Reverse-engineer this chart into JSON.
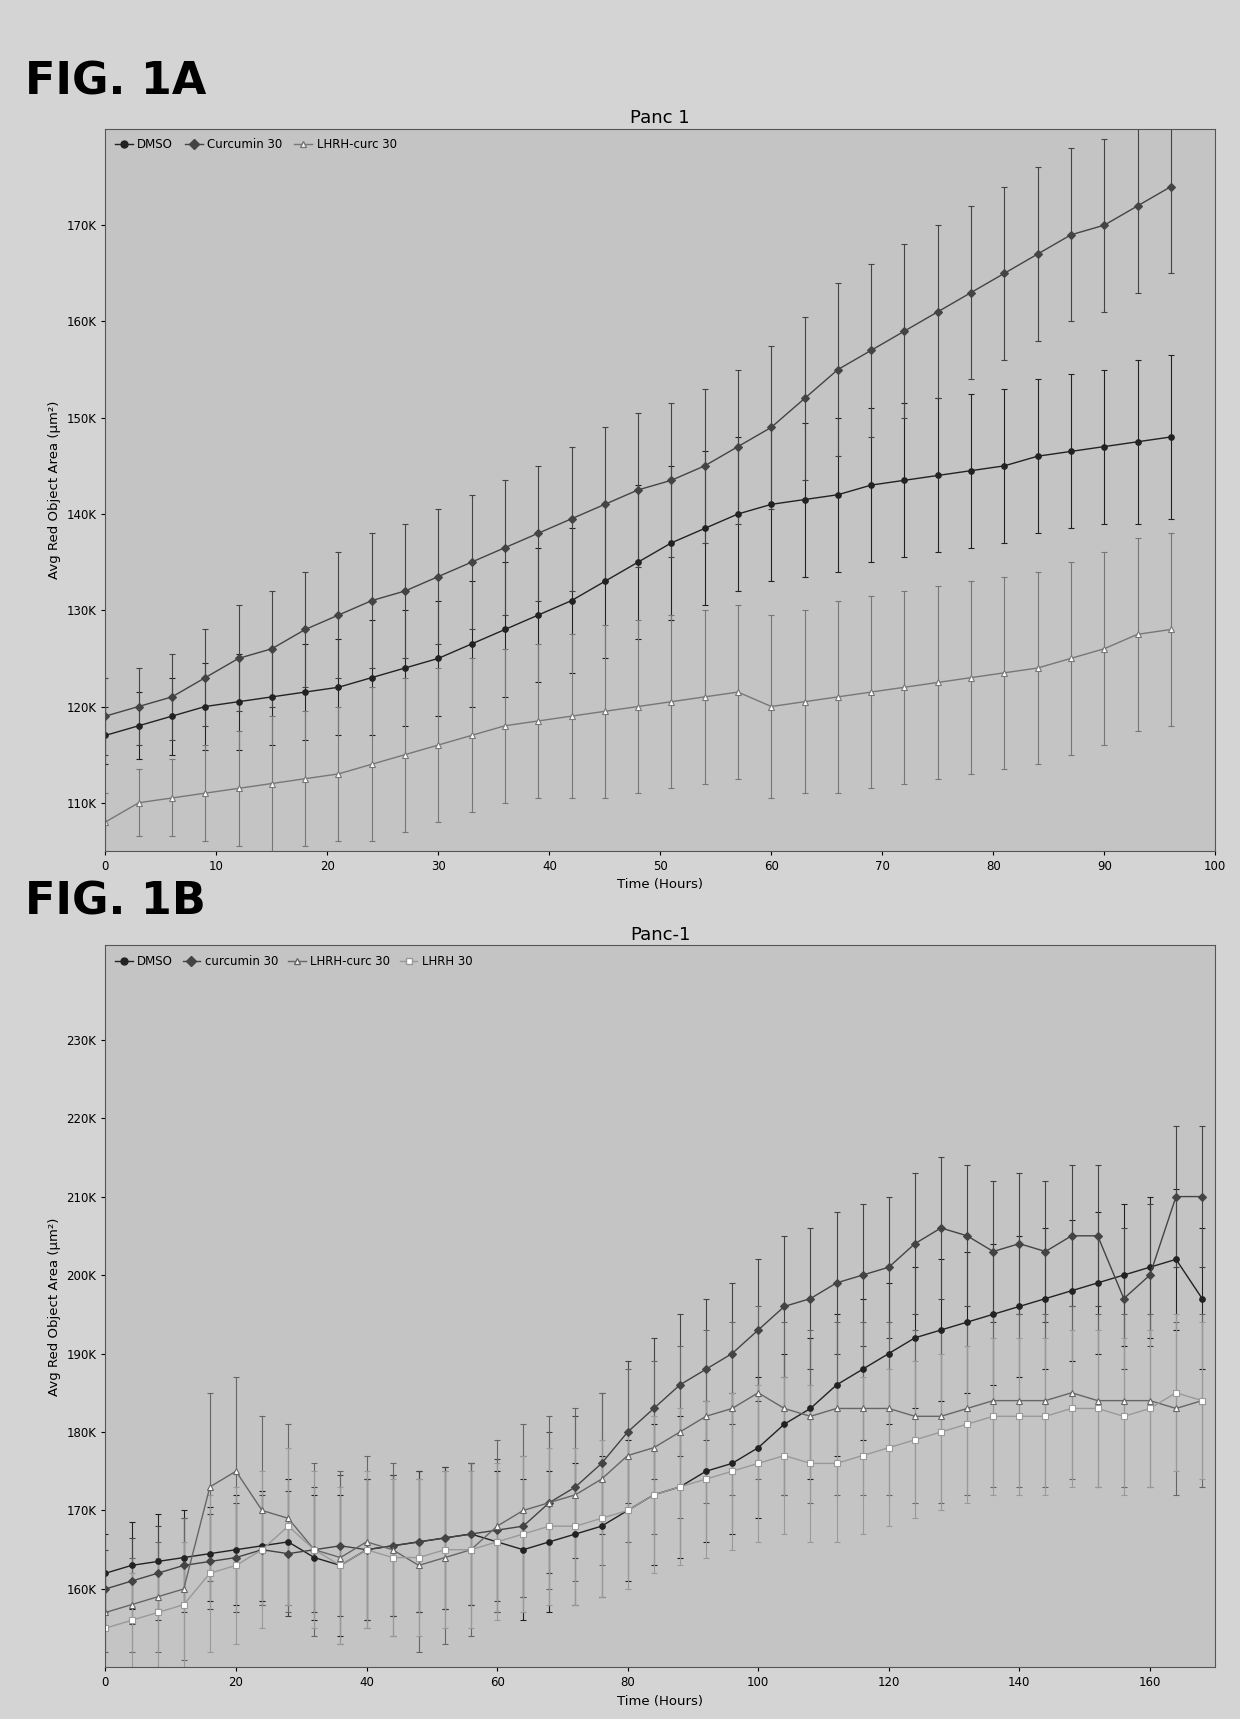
{
  "fig1a": {
    "title": "Panc 1",
    "xlabel": "Time (Hours)",
    "ylabel": "Avg Red Object Area (μm²)",
    "legend_labels": [
      "DMSO",
      "Curcumin 30",
      "LHRH-curc 30"
    ],
    "colors": [
      "#222222",
      "#444444",
      "#777777"
    ],
    "markers": [
      "o",
      "D",
      "^"
    ],
    "xlim": [
      0,
      100
    ],
    "ylim": [
      105000,
      180000
    ],
    "yticks": [
      110000,
      120000,
      130000,
      140000,
      150000,
      160000,
      170000
    ],
    "ytick_labels": [
      "110K",
      "120K",
      "130K",
      "140K",
      "150K",
      "160K",
      "170K"
    ],
    "xticks": [
      0,
      10,
      20,
      30,
      40,
      50,
      60,
      70,
      80,
      90,
      100
    ],
    "time_1a": [
      0,
      3,
      6,
      9,
      12,
      15,
      18,
      21,
      24,
      27,
      30,
      33,
      36,
      39,
      42,
      45,
      48,
      51,
      54,
      57,
      60,
      63,
      66,
      69,
      72,
      75,
      78,
      81,
      84,
      87,
      90,
      93,
      96
    ],
    "dmso_mean": [
      117000,
      118000,
      119000,
      120000,
      120500,
      121000,
      121500,
      122000,
      123000,
      124000,
      125000,
      126500,
      128000,
      129500,
      131000,
      133000,
      135000,
      137000,
      138500,
      140000,
      141000,
      141500,
      142000,
      143000,
      143500,
      144000,
      144500,
      145000,
      146000,
      146500,
      147000,
      147500,
      148000
    ],
    "dmso_err": [
      3000,
      3500,
      4000,
      4500,
      5000,
      5000,
      5000,
      5000,
      6000,
      6000,
      6000,
      6500,
      7000,
      7000,
      7500,
      8000,
      8000,
      8000,
      8000,
      8000,
      8000,
      8000,
      8000,
      8000,
      8000,
      8000,
      8000,
      8000,
      8000,
      8000,
      8000,
      8500,
      8500
    ],
    "curc30_mean": [
      119000,
      120000,
      121000,
      123000,
      125000,
      126000,
      128000,
      129500,
      131000,
      132000,
      133500,
      135000,
      136500,
      138000,
      139500,
      141000,
      142500,
      143500,
      145000,
      147000,
      149000,
      152000,
      155000,
      157000,
      159000,
      161000,
      163000,
      165000,
      167000,
      169000,
      170000,
      172000,
      174000
    ],
    "curc30_err": [
      4000,
      4000,
      4500,
      5000,
      5500,
      6000,
      6000,
      6500,
      7000,
      7000,
      7000,
      7000,
      7000,
      7000,
      7500,
      8000,
      8000,
      8000,
      8000,
      8000,
      8500,
      8500,
      9000,
      9000,
      9000,
      9000,
      9000,
      9000,
      9000,
      9000,
      9000,
      9000,
      9000
    ],
    "lhrh30_mean": [
      108000,
      110000,
      110500,
      111000,
      111500,
      112000,
      112500,
      113000,
      114000,
      115000,
      116000,
      117000,
      118000,
      118500,
      119000,
      119500,
      120000,
      120500,
      121000,
      121500,
      120000,
      120500,
      121000,
      121500,
      122000,
      122500,
      123000,
      123500,
      124000,
      125000,
      126000,
      127500,
      128000
    ],
    "lhrh30_err": [
      3000,
      3500,
      4000,
      5000,
      6000,
      7000,
      7000,
      7000,
      8000,
      8000,
      8000,
      8000,
      8000,
      8000,
      8500,
      9000,
      9000,
      9000,
      9000,
      9000,
      9500,
      9500,
      10000,
      10000,
      10000,
      10000,
      10000,
      10000,
      10000,
      10000,
      10000,
      10000,
      10000
    ]
  },
  "fig1b": {
    "title": "Panc-1",
    "xlabel": "Time (Hours)",
    "ylabel": "Avg Red Object Area (μm²)",
    "legend_labels": [
      "DMSO",
      "curcumin 30",
      "LHRH-curc 30",
      "LHRH 30"
    ],
    "colors": [
      "#222222",
      "#444444",
      "#666666",
      "#999999"
    ],
    "markers": [
      "o",
      "D",
      "^",
      "s"
    ],
    "xlim": [
      0,
      170
    ],
    "ylim": [
      150000,
      242000
    ],
    "yticks": [
      160000,
      170000,
      180000,
      190000,
      200000,
      210000,
      220000,
      230000
    ],
    "ytick_labels": [
      "160K",
      "170K",
      "180K",
      "190K",
      "200K",
      "210K",
      "220K",
      "230K"
    ],
    "xticks": [
      0,
      20,
      40,
      60,
      80,
      100,
      120,
      140,
      160
    ],
    "time_1b": [
      0,
      4,
      8,
      12,
      16,
      20,
      24,
      28,
      32,
      36,
      40,
      44,
      48,
      52,
      56,
      60,
      64,
      68,
      72,
      76,
      80,
      84,
      88,
      92,
      96,
      100,
      104,
      108,
      112,
      116,
      120,
      124,
      128,
      132,
      136,
      140,
      144,
      148,
      152,
      156,
      160,
      164,
      168
    ],
    "dmso_mean": [
      162000,
      163000,
      163500,
      164000,
      164500,
      165000,
      165500,
      166000,
      164000,
      163000,
      165000,
      165500,
      166000,
      166500,
      167000,
      166000,
      165000,
      166000,
      167000,
      168000,
      170000,
      172000,
      173000,
      175000,
      176000,
      178000,
      181000,
      183000,
      186000,
      188000,
      190000,
      192000,
      193000,
      194000,
      195000,
      196000,
      197000,
      198000,
      199000,
      200000,
      201000,
      202000,
      197000
    ],
    "dmso_err": [
      5000,
      5500,
      6000,
      6000,
      6000,
      7000,
      7000,
      8000,
      8000,
      9000,
      9000,
      9000,
      9000,
      9000,
      9000,
      9000,
      9000,
      9000,
      9000,
      9000,
      9000,
      9000,
      9000,
      9000,
      9000,
      9000,
      9000,
      9000,
      9000,
      9000,
      9000,
      9000,
      9000,
      9000,
      9000,
      9000,
      9000,
      9000,
      9000,
      9000,
      9000,
      9000,
      9000
    ],
    "curc30_mean": [
      160000,
      161000,
      162000,
      163000,
      163500,
      164000,
      165000,
      164500,
      165000,
      165500,
      165000,
      165500,
      166000,
      166500,
      167000,
      167500,
      168000,
      171000,
      173000,
      176000,
      180000,
      183000,
      186000,
      188000,
      190000,
      193000,
      196000,
      197000,
      199000,
      200000,
      201000,
      204000,
      206000,
      205000,
      203000,
      204000,
      203000,
      205000,
      205000,
      197000,
      200000,
      210000,
      210000
    ],
    "curc30_err": [
      5000,
      5500,
      6000,
      6000,
      6000,
      7000,
      7000,
      8000,
      8000,
      9000,
      9000,
      9000,
      9000,
      9000,
      9000,
      9000,
      9000,
      9000,
      9000,
      9000,
      9000,
      9000,
      9000,
      9000,
      9000,
      9000,
      9000,
      9000,
      9000,
      9000,
      9000,
      9000,
      9000,
      9000,
      9000,
      9000,
      9000,
      9000,
      9000,
      9000,
      9000,
      9000,
      9000
    ],
    "lhrh_curc30_mean": [
      157000,
      158000,
      159000,
      160000,
      173000,
      175000,
      170000,
      169000,
      165000,
      164000,
      166000,
      165000,
      163000,
      164000,
      165000,
      168000,
      170000,
      171000,
      172000,
      174000,
      177000,
      178000,
      180000,
      182000,
      183000,
      185000,
      183000,
      182000,
      183000,
      183000,
      183000,
      182000,
      182000,
      183000,
      184000,
      184000,
      184000,
      185000,
      184000,
      184000,
      184000,
      183000,
      184000
    ],
    "lhrh_curc30_err": [
      5000,
      6000,
      7000,
      9000,
      12000,
      12000,
      12000,
      12000,
      11000,
      11000,
      11000,
      11000,
      11000,
      11000,
      11000,
      11000,
      11000,
      11000,
      11000,
      11000,
      11000,
      11000,
      11000,
      11000,
      11000,
      11000,
      11000,
      11000,
      11000,
      11000,
      11000,
      11000,
      11000,
      11000,
      11000,
      11000,
      11000,
      11000,
      11000,
      11000,
      11000,
      11000,
      11000
    ],
    "lhrh30_mean": [
      155000,
      156000,
      157000,
      158000,
      162000,
      163000,
      165000,
      168000,
      165000,
      163000,
      165000,
      164000,
      164000,
      165000,
      165000,
      166000,
      167000,
      168000,
      168000,
      169000,
      170000,
      172000,
      173000,
      174000,
      175000,
      176000,
      177000,
      176000,
      176000,
      177000,
      178000,
      179000,
      180000,
      181000,
      182000,
      182000,
      182000,
      183000,
      183000,
      182000,
      183000,
      185000,
      184000
    ],
    "lhrh30_err": [
      5000,
      6000,
      7000,
      8000,
      10000,
      10000,
      10000,
      10000,
      10000,
      10000,
      10000,
      10000,
      10000,
      10000,
      10000,
      10000,
      10000,
      10000,
      10000,
      10000,
      10000,
      10000,
      10000,
      10000,
      10000,
      10000,
      10000,
      10000,
      10000,
      10000,
      10000,
      10000,
      10000,
      10000,
      10000,
      10000,
      10000,
      10000,
      10000,
      10000,
      10000,
      10000,
      10000
    ]
  },
  "bg_color": "#d4d4d4",
  "plot_bg_color": "#c4c4c4",
  "fig_label_fontsize": 32,
  "title_fontsize": 13,
  "legend_fontsize": 8.5,
  "axis_fontsize": 9.5,
  "tick_fontsize": 8.5
}
